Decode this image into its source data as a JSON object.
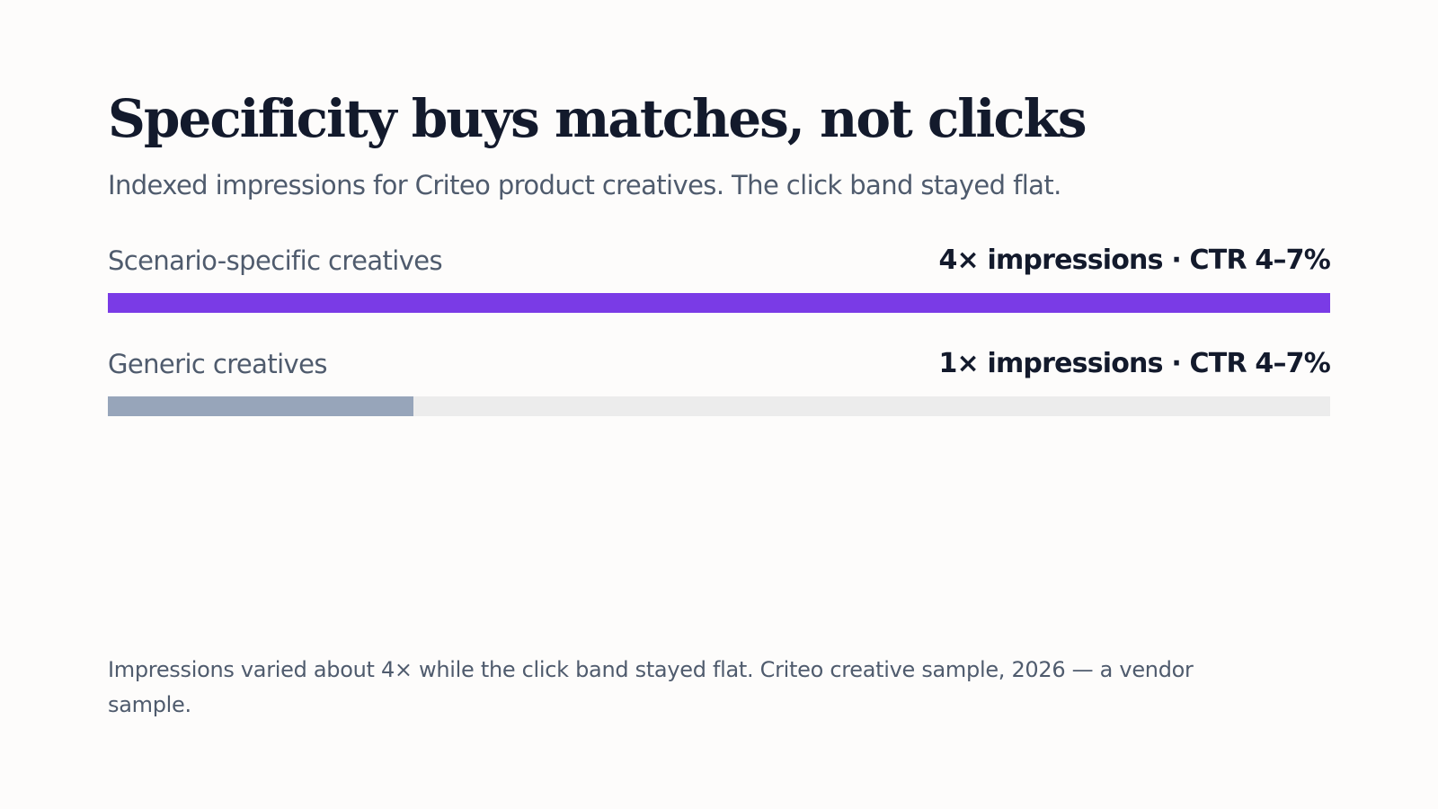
{
  "slide": {
    "title": "Specificity buys matches, not clicks",
    "subtitle": "Indexed impressions for Criteo product creatives. The click band stayed flat.",
    "footnote": "Impressions varied about 4× while the click band stayed flat. Criteo creative sample, 2026 — a vendor sample."
  },
  "chart_data": {
    "type": "bar",
    "orientation": "horizontal",
    "categories": [
      "Scenario-specific creatives",
      "Generic creatives"
    ],
    "values": [
      4,
      1
    ],
    "value_labels": [
      "4× impressions · CTR 4–7%",
      "1× impressions · CTR 4–7%"
    ],
    "xlim": [
      0,
      4
    ],
    "grid": false,
    "legend": "none",
    "colors": [
      "#7a3be6",
      "#97a5ba"
    ],
    "track_color": "#ececec"
  }
}
